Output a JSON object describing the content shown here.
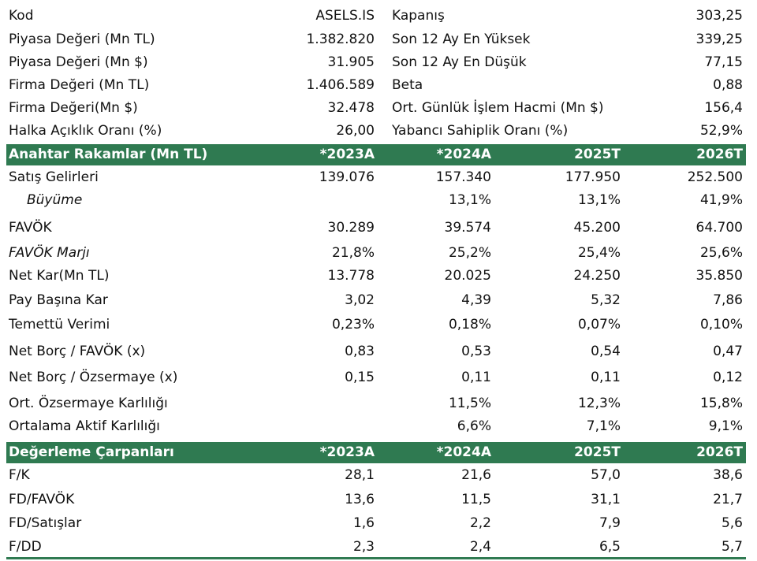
{
  "summary": [
    {
      "l": "Kod",
      "v": "ASELS.IS",
      "l2": "Kapanış",
      "v2": "303,25"
    },
    {
      "l": "Piyasa Değeri (Mn TL)",
      "v": "1.382.820",
      "l2": "Son 12 Ay En Yüksek",
      "v2": "339,25"
    },
    {
      "l": "Piyasa Değeri (Mn $)",
      "v": "31.905",
      "l2": "Son 12 Ay En Düşük",
      "v2": "77,15"
    },
    {
      "l": "Firma Değeri (Mn TL)",
      "v": "1.406.589",
      "l2": "Beta",
      "v2": "0,88"
    },
    {
      "l": "Firma Değeri(Mn $)",
      "v": "32.478",
      "l2": "Ort. Günlük İşlem Hacmi (Mn $)",
      "v2": "156,4"
    },
    {
      "l": "Halka Açıklık Oranı (%)",
      "v": "26,00",
      "l2": "Yabancı Sahiplik Oranı (%)",
      "v2": "52,9%"
    }
  ],
  "key_header": {
    "title": "Anahtar Rakamlar (Mn TL)",
    "cols": [
      "*2023A",
      "*2024A",
      "2025T",
      "2026T"
    ]
  },
  "key_rows": [
    {
      "l": "Satış Gelirleri",
      "v": [
        "139.076",
        "157.340",
        "177.950",
        "252.500"
      ]
    },
    {
      "l": "Büyüme",
      "v": [
        "",
        "13,1%",
        "13,1%",
        "41,9%"
      ]
    },
    {
      "l": "FAVÖK",
      "v": [
        "30.289",
        "39.574",
        "45.200",
        "64.700"
      ]
    },
    {
      "l": "FAVÖK Marjı",
      "v": [
        "21,8%",
        "25,2%",
        "25,4%",
        "25,6%"
      ]
    },
    {
      "l": "Net Kar(Mn TL)",
      "v": [
        "13.778",
        "20.025",
        "24.250",
        "35.850"
      ]
    },
    {
      "l": "Pay Başına Kar",
      "v": [
        "3,02",
        "4,39",
        "5,32",
        "7,86"
      ]
    },
    {
      "l": "Temettü Verimi",
      "v": [
        "0,23%",
        "0,18%",
        "0,07%",
        "0,10%"
      ]
    },
    {
      "l": "Net Borç / FAVÖK (x)",
      "v": [
        "0,83",
        "0,53",
        "0,54",
        "0,47"
      ]
    },
    {
      "l": "Net Borç / Özsermaye (x)",
      "v": [
        "0,15",
        "0,11",
        "0,11",
        "0,12"
      ]
    },
    {
      "l": "Ort. Özsermaye Karlılığı",
      "v": [
        "",
        "11,5%",
        "12,3%",
        "15,8%"
      ]
    },
    {
      "l": "Ortalama Aktif Karlılığı",
      "v": [
        "",
        "6,6%",
        "7,1%",
        "9,1%"
      ]
    }
  ],
  "val_header": {
    "title": "Değerleme Çarpanları",
    "cols": [
      "*2023A",
      "*2024A",
      "2025T",
      "2026T"
    ]
  },
  "val_rows": [
    {
      "l": "F/K",
      "v": [
        "28,1",
        "21,6",
        "57,0",
        "38,6"
      ]
    },
    {
      "l": "FD/FAVÖK",
      "v": [
        "13,6",
        "11,5",
        "31,1",
        "21,7"
      ]
    },
    {
      "l": "FD/Satışlar",
      "v": [
        "1,6",
        "2,2",
        "7,9",
        "5,6"
      ]
    },
    {
      "l": "F/DD",
      "v": [
        "2,3",
        "2,4",
        "6,5",
        "5,7"
      ]
    }
  ]
}
